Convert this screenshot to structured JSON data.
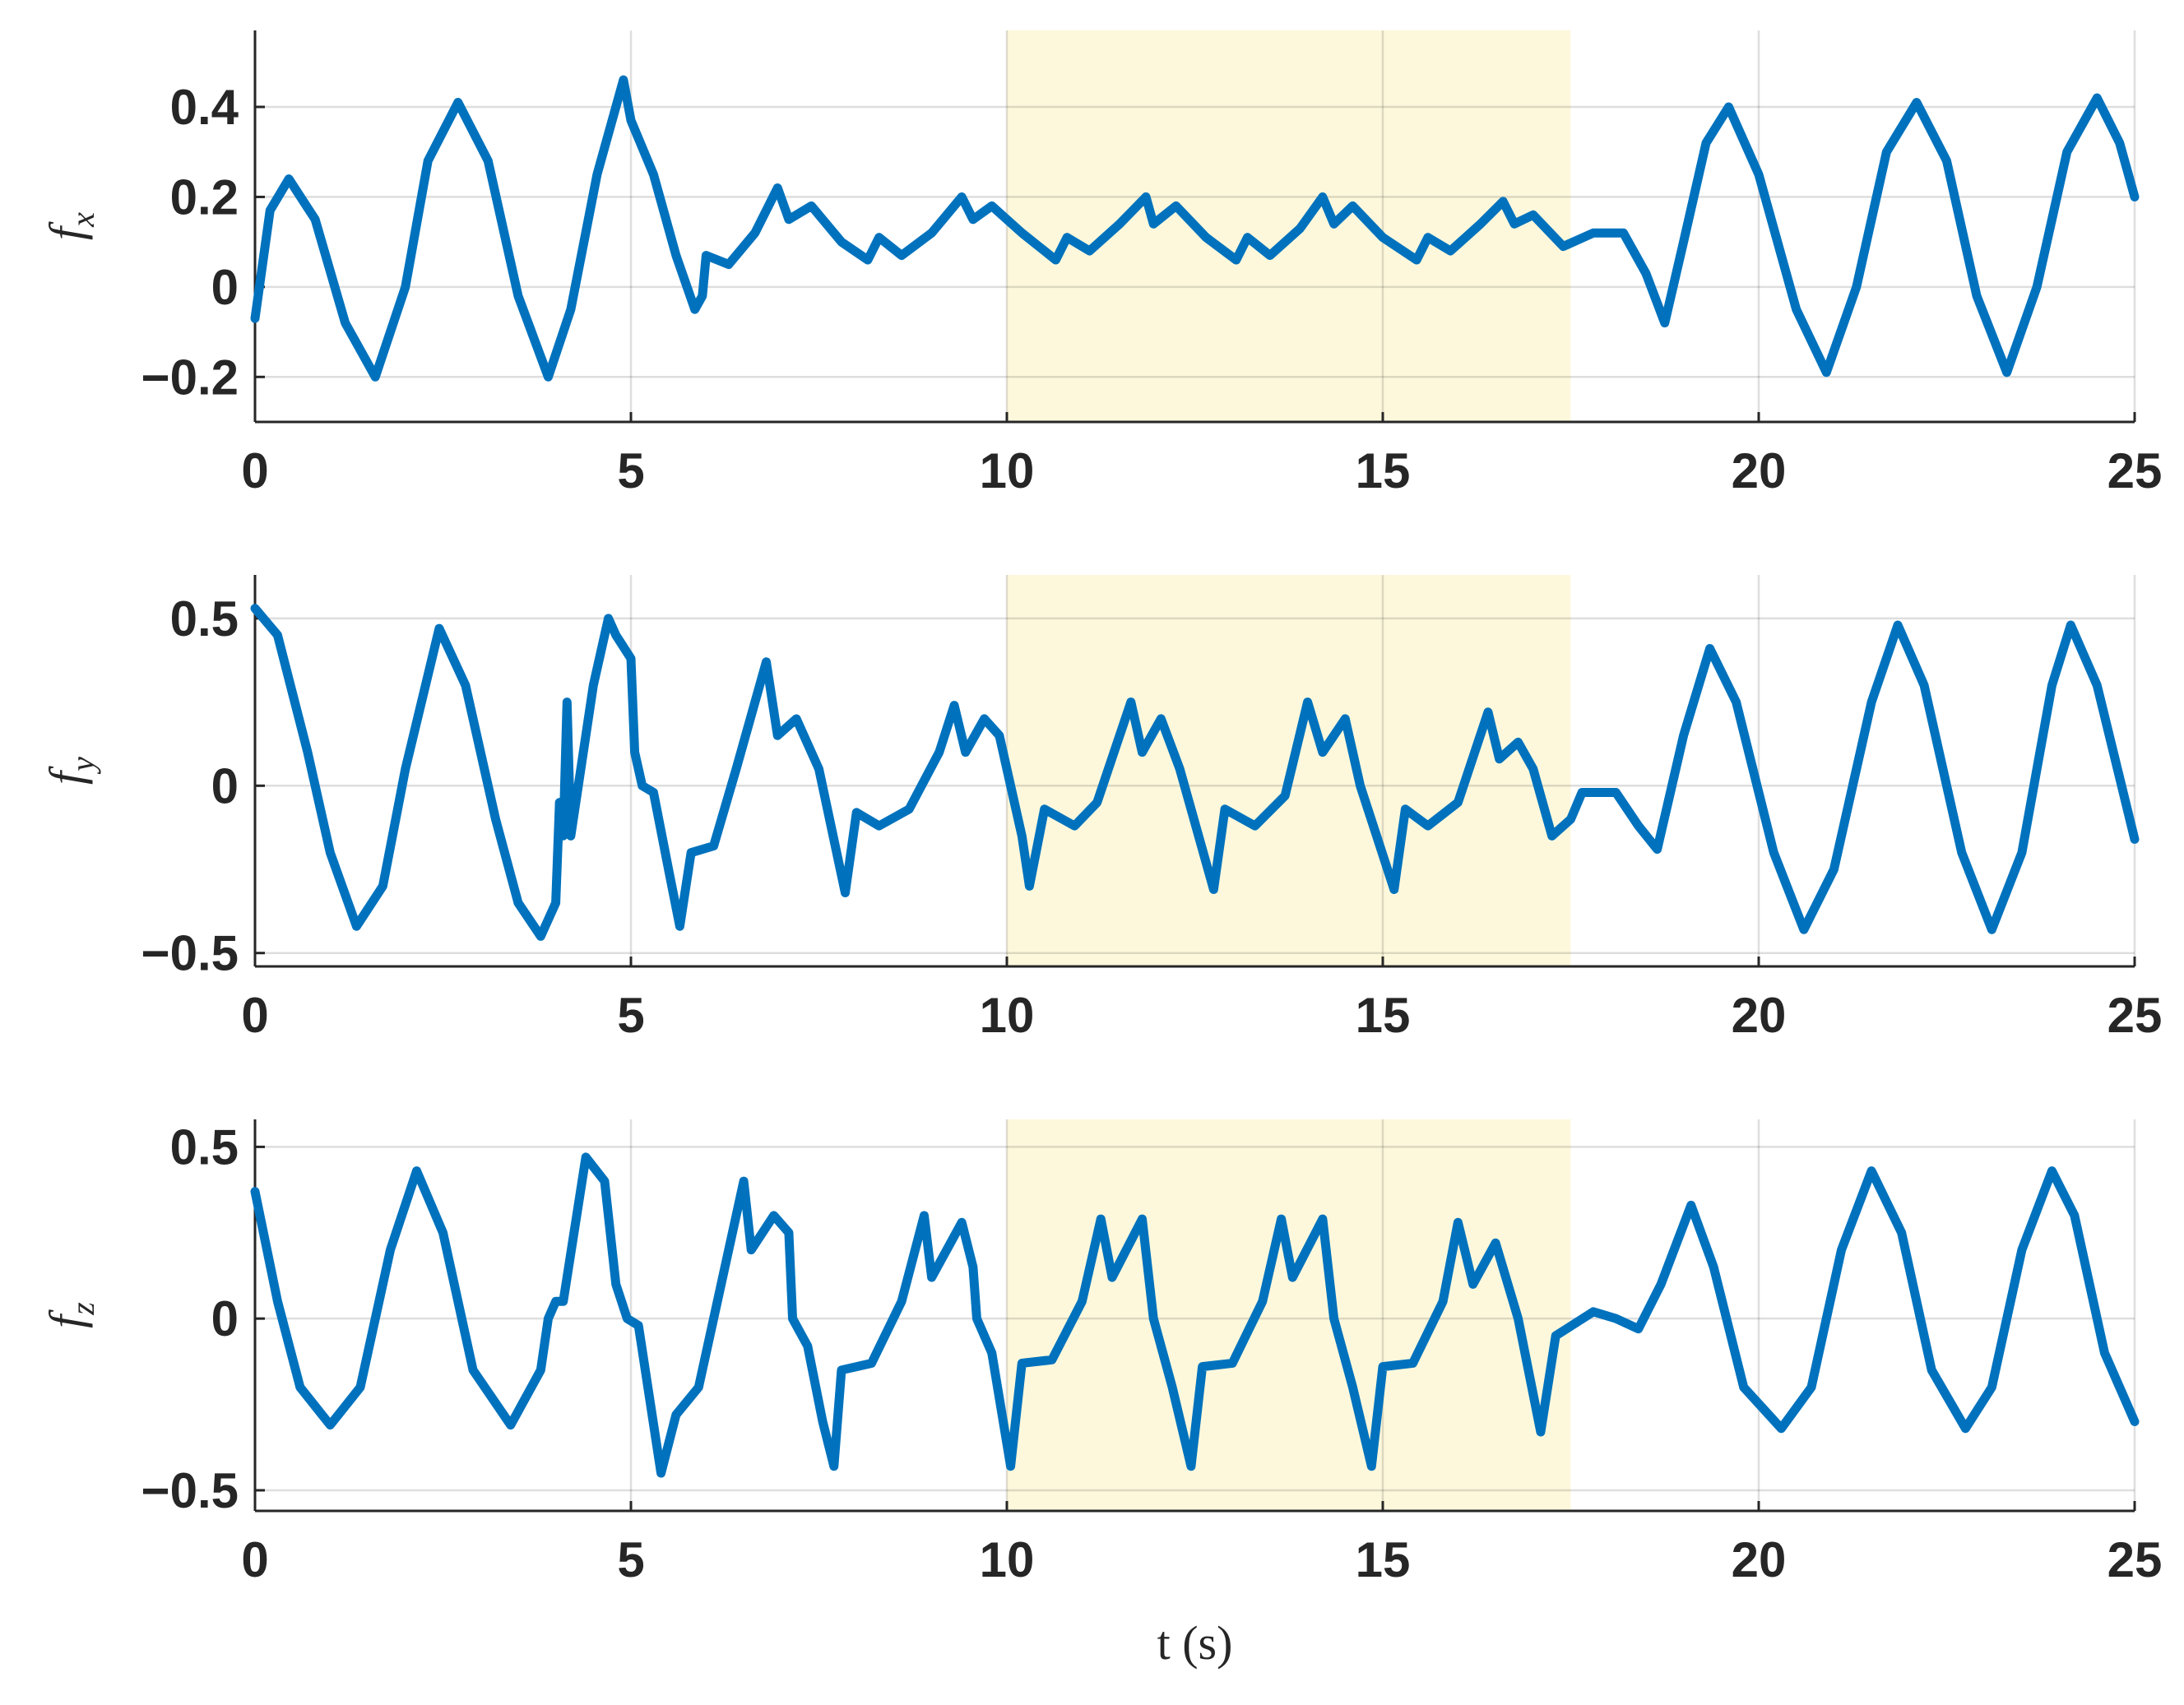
{
  "chart_data": [
    {
      "type": "line",
      "ylabel": "f",
      "ylabel_subscript": "x",
      "color": "#0072bd",
      "grid": true,
      "highlight_x": [
        10,
        17.5
      ],
      "highlight_color": "#fdf8dc",
      "xlim": [
        0,
        25
      ],
      "xticks": [
        0,
        5,
        10,
        15,
        20,
        25
      ],
      "ylim": [
        -0.3,
        0.57
      ],
      "yticks": [
        {
          "value": -0.2,
          "label": "−0.2"
        },
        0,
        0.2,
        0.4
      ],
      "x": [
        0,
        0.2,
        0.45,
        0.8,
        1.2,
        1.6,
        2.0,
        2.3,
        2.7,
        3.1,
        3.5,
        3.9,
        4.2,
        4.55,
        4.9,
        5.0,
        5.3,
        5.6,
        5.85,
        5.95,
        6.0,
        6.3,
        6.65,
        6.95,
        7.1,
        7.4,
        7.8,
        8.15,
        8.3,
        8.6,
        9.0,
        9.4,
        9.55,
        9.8,
        10.2,
        10.65,
        10.8,
        11.1,
        11.5,
        11.85,
        11.95,
        12.25,
        12.65,
        13.05,
        13.2,
        13.5,
        13.9,
        14.2,
        14.35,
        14.6,
        15.0,
        15.45,
        15.6,
        15.9,
        16.3,
        16.6,
        16.75,
        17.0,
        17.4,
        17.8,
        18.2,
        18.5,
        18.75,
        19.0,
        19.3,
        19.6,
        20.0,
        20.5,
        20.9,
        21.3,
        21.7,
        22.1,
        22.5,
        22.9,
        23.3,
        23.7,
        24.1,
        24.5,
        24.8,
        25
      ],
      "values": [
        -0.07,
        0.17,
        0.24,
        0.15,
        -0.08,
        -0.2,
        0.0,
        0.28,
        0.41,
        0.28,
        -0.02,
        -0.2,
        -0.05,
        0.25,
        0.46,
        0.37,
        0.25,
        0.07,
        -0.05,
        -0.02,
        0.07,
        0.05,
        0.12,
        0.22,
        0.15,
        0.18,
        0.1,
        0.06,
        0.11,
        0.07,
        0.12,
        0.2,
        0.15,
        0.18,
        0.12,
        0.06,
        0.11,
        0.08,
        0.14,
        0.2,
        0.14,
        0.18,
        0.11,
        0.06,
        0.11,
        0.07,
        0.13,
        0.2,
        0.14,
        0.18,
        0.11,
        0.06,
        0.11,
        0.08,
        0.14,
        0.19,
        0.14,
        0.16,
        0.09,
        0.12,
        0.12,
        0.03,
        -0.08,
        0.1,
        0.32,
        0.4,
        0.25,
        -0.05,
        -0.19,
        0.0,
        0.3,
        0.41,
        0.28,
        -0.02,
        -0.19,
        0.0,
        0.3,
        0.42,
        0.32,
        0.2
      ]
    },
    {
      "type": "line",
      "ylabel": "f",
      "ylabel_subscript": "y",
      "color": "#0072bd",
      "grid": true,
      "highlight_x": [
        10,
        17.5
      ],
      "highlight_color": "#fdf8dc",
      "xlim": [
        0,
        25
      ],
      "xticks": [
        0,
        5,
        10,
        15,
        20,
        25
      ],
      "ylim": [
        -0.54,
        0.63
      ],
      "yticks": [
        {
          "value": -0.5,
          "label": "−0.5"
        },
        0,
        0.5
      ],
      "x": [
        0,
        0.3,
        0.7,
        1.0,
        1.35,
        1.7,
        2.0,
        2.45,
        2.8,
        3.2,
        3.5,
        3.8,
        4.0,
        4.05,
        4.1,
        4.15,
        4.2,
        4.3,
        4.5,
        4.7,
        4.8,
        5.0,
        5.05,
        5.15,
        5.3,
        5.5,
        5.65,
        5.8,
        6.1,
        6.4,
        6.8,
        6.95,
        7.2,
        7.5,
        7.85,
        8.0,
        8.3,
        8.7,
        9.1,
        9.3,
        9.45,
        9.7,
        9.9,
        10.2,
        10.3,
        10.5,
        10.9,
        11.2,
        11.5,
        11.65,
        11.8,
        12.05,
        12.3,
        12.75,
        12.9,
        13.3,
        13.7,
        14.0,
        14.2,
        14.5,
        14.7,
        15.15,
        15.3,
        15.6,
        16.0,
        16.4,
        16.55,
        16.8,
        17.0,
        17.25,
        17.5,
        17.65,
        18.1,
        18.4,
        18.65,
        19.0,
        19.35,
        19.7,
        20.2,
        20.6,
        21.0,
        21.5,
        21.85,
        22.2,
        22.7,
        23.1,
        23.5,
        23.9,
        24.15,
        24.5,
        25
      ],
      "values": [
        0.53,
        0.45,
        0.1,
        -0.2,
        -0.42,
        -0.3,
        0.05,
        0.47,
        0.3,
        -0.1,
        -0.35,
        -0.45,
        -0.35,
        -0.05,
        -0.15,
        0.25,
        -0.15,
        0.0,
        0.3,
        0.5,
        0.45,
        0.38,
        0.1,
        0.0,
        -0.02,
        -0.25,
        -0.42,
        -0.2,
        -0.18,
        0.05,
        0.37,
        0.15,
        0.2,
        0.05,
        -0.32,
        -0.08,
        -0.12,
        -0.07,
        0.1,
        0.24,
        0.1,
        0.2,
        0.15,
        -0.15,
        -0.3,
        -0.07,
        -0.12,
        -0.05,
        0.15,
        0.25,
        0.1,
        0.2,
        0.05,
        -0.31,
        -0.07,
        -0.12,
        -0.03,
        0.25,
        0.1,
        0.2,
        0.0,
        -0.31,
        -0.07,
        -0.12,
        -0.05,
        0.22,
        0.08,
        0.13,
        0.05,
        -0.15,
        -0.1,
        -0.02,
        -0.02,
        -0.12,
        -0.19,
        0.15,
        0.41,
        0.25,
        -0.2,
        -0.43,
        -0.25,
        0.25,
        0.48,
        0.3,
        -0.2,
        -0.43,
        -0.2,
        0.3,
        0.48,
        0.3,
        -0.16
      ]
    },
    {
      "type": "line",
      "ylabel": "f",
      "ylabel_subscript": "z",
      "xlabel": "t (s)",
      "color": "#0072bd",
      "grid": true,
      "highlight_x": [
        10,
        17.5
      ],
      "highlight_color": "#fdf8dc",
      "xlim": [
        0,
        25
      ],
      "xticks": [
        0,
        5,
        10,
        15,
        20,
        25
      ],
      "ylim": [
        -0.56,
        0.58
      ],
      "yticks": [
        {
          "value": -0.5,
          "label": "−0.5"
        },
        0,
        0.5
      ],
      "x": [
        0,
        0.3,
        0.6,
        1.0,
        1.4,
        1.8,
        2.15,
        2.5,
        2.9,
        3.4,
        3.8,
        3.9,
        4.0,
        4.1,
        4.4,
        4.65,
        4.7,
        4.8,
        4.95,
        5.1,
        5.4,
        5.6,
        5.9,
        6.2,
        6.5,
        6.6,
        6.9,
        7.1,
        7.15,
        7.35,
        7.55,
        7.7,
        7.8,
        8.2,
        8.6,
        8.9,
        9.0,
        9.4,
        9.55,
        9.6,
        9.8,
        10.05,
        10.2,
        10.6,
        11.0,
        11.25,
        11.4,
        11.8,
        11.95,
        12.2,
        12.45,
        12.6,
        13.0,
        13.4,
        13.65,
        13.8,
        14.2,
        14.35,
        14.6,
        14.85,
        15.0,
        15.4,
        15.8,
        16.0,
        16.2,
        16.5,
        16.8,
        17.1,
        17.3,
        17.8,
        18.1,
        18.4,
        18.7,
        19.1,
        19.4,
        19.8,
        20.3,
        20.7,
        21.1,
        21.5,
        21.9,
        22.3,
        22.75,
        23.1,
        23.5,
        23.9,
        24.2,
        24.6,
        25
      ],
      "values": [
        0.37,
        0.05,
        -0.2,
        -0.31,
        -0.2,
        0.2,
        0.43,
        0.25,
        -0.15,
        -0.31,
        -0.15,
        0.0,
        0.05,
        0.05,
        0.47,
        0.4,
        0.3,
        0.1,
        0.0,
        -0.02,
        -0.45,
        -0.28,
        -0.2,
        0.1,
        0.4,
        0.2,
        0.3,
        0.25,
        0.0,
        -0.08,
        -0.3,
        -0.43,
        -0.15,
        -0.13,
        0.05,
        0.3,
        0.12,
        0.28,
        0.15,
        0.0,
        -0.1,
        -0.43,
        -0.13,
        -0.12,
        0.05,
        0.29,
        0.12,
        0.29,
        0.0,
        -0.2,
        -0.43,
        -0.14,
        -0.13,
        0.05,
        0.29,
        0.12,
        0.29,
        0.0,
        -0.2,
        -0.43,
        -0.14,
        -0.13,
        0.05,
        0.28,
        0.1,
        0.22,
        0.0,
        -0.33,
        -0.05,
        0.02,
        0.0,
        -0.03,
        0.1,
        0.33,
        0.15,
        -0.2,
        -0.32,
        -0.2,
        0.2,
        0.43,
        0.25,
        -0.15,
        -0.32,
        -0.2,
        0.2,
        0.43,
        0.3,
        -0.1,
        -0.3
      ]
    }
  ]
}
